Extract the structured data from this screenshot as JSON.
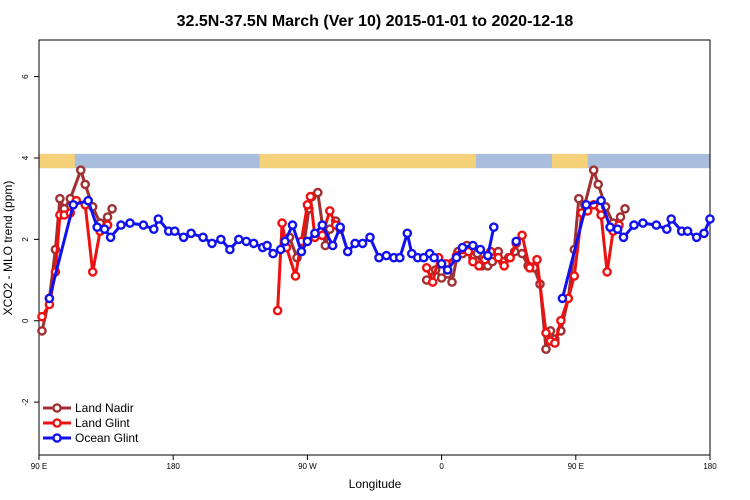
{
  "chart_data": {
    "type": "line",
    "title": "32.5N-37.5N March (Ver 10)   2015-01-01 to 2020-12-18",
    "xlabel": "Longitude",
    "ylabel": "XCO2 - MLO trend (ppm)",
    "x_ticks": [
      {
        "value": 90,
        "label": "90 E"
      },
      {
        "value": 180,
        "label": "180"
      },
      {
        "value": 270,
        "label": "90 W"
      },
      {
        "value": 360,
        "label": "0"
      },
      {
        "value": 450,
        "label": "90 E"
      },
      {
        "value": 540,
        "label": "180"
      }
    ],
    "y_ticks": [
      -2,
      0,
      2,
      4,
      6
    ],
    "xlim": [
      90,
      540
    ],
    "ylim": [
      -3.3,
      6.9
    ],
    "grid": false,
    "legend_position": "bottom-left",
    "band": {
      "y_range": [
        3.75,
        4.1
      ],
      "land_color": "#f5d27a",
      "ocean_color": "#a9bddc"
    },
    "series": [
      {
        "name": "Land Nadir",
        "color": "#a03030",
        "segments": [
          [
            [
              92,
              -0.25
            ],
            [
              97,
              0.55
            ],
            [
              101,
              1.75
            ],
            [
              104,
              3.0
            ],
            [
              107,
              2.75
            ],
            [
              111,
              3.0
            ],
            [
              118,
              3.7
            ],
            [
              121,
              3.35
            ],
            [
              126,
              2.8
            ],
            [
              131,
              2.4
            ],
            [
              136,
              2.55
            ],
            [
              139,
              2.75
            ]
          ],
          [
            [
              255,
              1.95
            ],
            [
              258,
              2.05
            ],
            [
              263,
              1.55
            ],
            [
              268,
              1.95
            ],
            [
              271,
              2.75
            ],
            [
              273,
              3.05
            ],
            [
              277,
              3.15
            ],
            [
              282,
              1.85
            ],
            [
              285,
              2.25
            ],
            [
              289,
              2.45
            ],
            [
              292,
              2.25
            ]
          ],
          [
            [
              350,
              1.0
            ],
            [
              356,
              1.25
            ],
            [
              360,
              1.05
            ],
            [
              364,
              1.15
            ],
            [
              367,
              0.95
            ],
            [
              371,
              1.7
            ],
            [
              374,
              1.65
            ],
            [
              377,
              1.85
            ],
            [
              381,
              1.55
            ],
            [
              384,
              1.65
            ],
            [
              387,
              1.35
            ],
            [
              391,
              1.35
            ],
            [
              394,
              1.45
            ],
            [
              398,
              1.7
            ],
            [
              401,
              1.45
            ],
            [
              405,
              1.55
            ],
            [
              409,
              1.7
            ],
            [
              414,
              1.65
            ],
            [
              418,
              1.35
            ],
            [
              422,
              1.3
            ],
            [
              426,
              0.9
            ],
            [
              430,
              -0.7
            ],
            [
              433,
              -0.25
            ],
            [
              436,
              -0.45
            ],
            [
              440,
              -0.25
            ],
            [
              445,
              0.55
            ],
            [
              449,
              1.75
            ],
            [
              452,
              3.0
            ],
            [
              456,
              2.85
            ],
            [
              462,
              3.7
            ],
            [
              465,
              3.35
            ],
            [
              470,
              2.8
            ],
            [
              475,
              2.4
            ],
            [
              480,
              2.55
            ],
            [
              483,
              2.75
            ]
          ]
        ]
      },
      {
        "name": "Land Glint",
        "color": "#ee1111",
        "segments": [
          [
            [
              92,
              0.1
            ],
            [
              97,
              0.4
            ],
            [
              101,
              1.2
            ],
            [
              104,
              2.6
            ],
            [
              107,
              2.6
            ],
            [
              111,
              2.65
            ],
            [
              115,
              2.95
            ],
            [
              121,
              2.85
            ],
            [
              126,
              1.2
            ],
            [
              131,
              2.2
            ],
            [
              136,
              2.35
            ]
          ],
          [
            [
              250,
              0.25
            ],
            [
              253,
              2.4
            ],
            [
              256,
              1.8
            ],
            [
              262,
              1.1
            ],
            [
              266,
              1.95
            ],
            [
              270,
              2.85
            ],
            [
              272,
              3.05
            ],
            [
              275,
              2.05
            ],
            [
              280,
              2.1
            ],
            [
              285,
              2.7
            ],
            [
              289,
              2.35
            ]
          ],
          [
            [
              350,
              1.3
            ],
            [
              354,
              0.95
            ],
            [
              358,
              1.55
            ],
            [
              363,
              1.4
            ],
            [
              370,
              1.6
            ],
            [
              374,
              1.75
            ],
            [
              378,
              1.7
            ],
            [
              381,
              1.45
            ],
            [
              385,
              1.35
            ],
            [
              389,
              1.5
            ],
            [
              393,
              1.7
            ],
            [
              398,
              1.55
            ],
            [
              402,
              1.35
            ],
            [
              406,
              1.55
            ],
            [
              410,
              1.9
            ],
            [
              414,
              2.1
            ],
            [
              419,
              1.3
            ],
            [
              424,
              1.5
            ],
            [
              430,
              -0.3
            ],
            [
              433,
              -0.5
            ],
            [
              436,
              -0.55
            ],
            [
              440,
              0.0
            ],
            [
              445,
              0.55
            ],
            [
              449,
              1.1
            ],
            [
              454,
              2.65
            ],
            [
              458,
              2.7
            ],
            [
              462,
              2.85
            ],
            [
              467,
              2.6
            ],
            [
              471,
              1.2
            ],
            [
              475,
              2.2
            ],
            [
              479,
              2.35
            ]
          ]
        ]
      },
      {
        "name": "Ocean Glint",
        "color": "#1111ee",
        "segments": [
          [
            [
              97,
              0.55
            ],
            [
              113,
              2.85
            ],
            [
              123,
              2.95
            ],
            [
              129,
              2.3
            ],
            [
              134,
              2.25
            ],
            [
              138,
              2.05
            ],
            [
              145,
              2.35
            ],
            [
              151,
              2.4
            ],
            [
              160,
              2.35
            ],
            [
              167,
              2.25
            ],
            [
              170,
              2.5
            ],
            [
              177,
              2.2
            ],
            [
              181,
              2.2
            ],
            [
              187,
              2.05
            ],
            [
              192,
              2.15
            ],
            [
              200,
              2.05
            ],
            [
              206,
              1.9
            ],
            [
              212,
              2.0
            ],
            [
              218,
              1.75
            ],
            [
              224,
              2.0
            ],
            [
              229,
              1.95
            ],
            [
              234,
              1.9
            ],
            [
              240,
              1.8
            ],
            [
              243,
              1.85
            ],
            [
              247,
              1.65
            ],
            [
              252,
              1.75
            ],
            [
              255,
              1.95
            ],
            [
              260,
              2.35
            ],
            [
              266,
              1.7
            ],
            [
              270,
              1.95
            ],
            [
              275,
              2.15
            ],
            [
              280,
              2.35
            ],
            [
              287,
              1.85
            ],
            [
              292,
              2.3
            ],
            [
              297,
              1.7
            ],
            [
              302,
              1.9
            ],
            [
              307,
              1.9
            ],
            [
              312,
              2.05
            ],
            [
              318,
              1.55
            ],
            [
              323,
              1.6
            ],
            [
              328,
              1.55
            ],
            [
              332,
              1.55
            ],
            [
              337,
              2.15
            ],
            [
              340,
              1.65
            ],
            [
              344,
              1.55
            ],
            [
              348,
              1.55
            ],
            [
              352,
              1.65
            ],
            [
              355,
              1.55
            ],
            [
              360,
              1.4
            ],
            [
              364,
              1.25
            ],
            [
              370,
              1.55
            ],
            [
              374,
              1.8
            ],
            [
              381,
              1.85
            ],
            [
              386,
              1.75
            ],
            [
              391,
              1.6
            ],
            [
              395,
              2.3
            ]
          ],
          [
            [
              410,
              1.95
            ]
          ],
          [
            [
              441,
              0.55
            ],
            [
              457,
              2.85
            ],
            [
              467,
              2.95
            ],
            [
              473,
              2.3
            ],
            [
              478,
              2.25
            ],
            [
              482,
              2.05
            ],
            [
              489,
              2.35
            ],
            [
              495,
              2.4
            ],
            [
              504,
              2.35
            ],
            [
              511,
              2.25
            ],
            [
              514,
              2.5
            ],
            [
              521,
              2.2
            ],
            [
              525,
              2.2
            ],
            [
              531,
              2.05
            ],
            [
              536,
              2.15
            ],
            [
              540,
              2.5
            ]
          ]
        ]
      }
    ]
  }
}
